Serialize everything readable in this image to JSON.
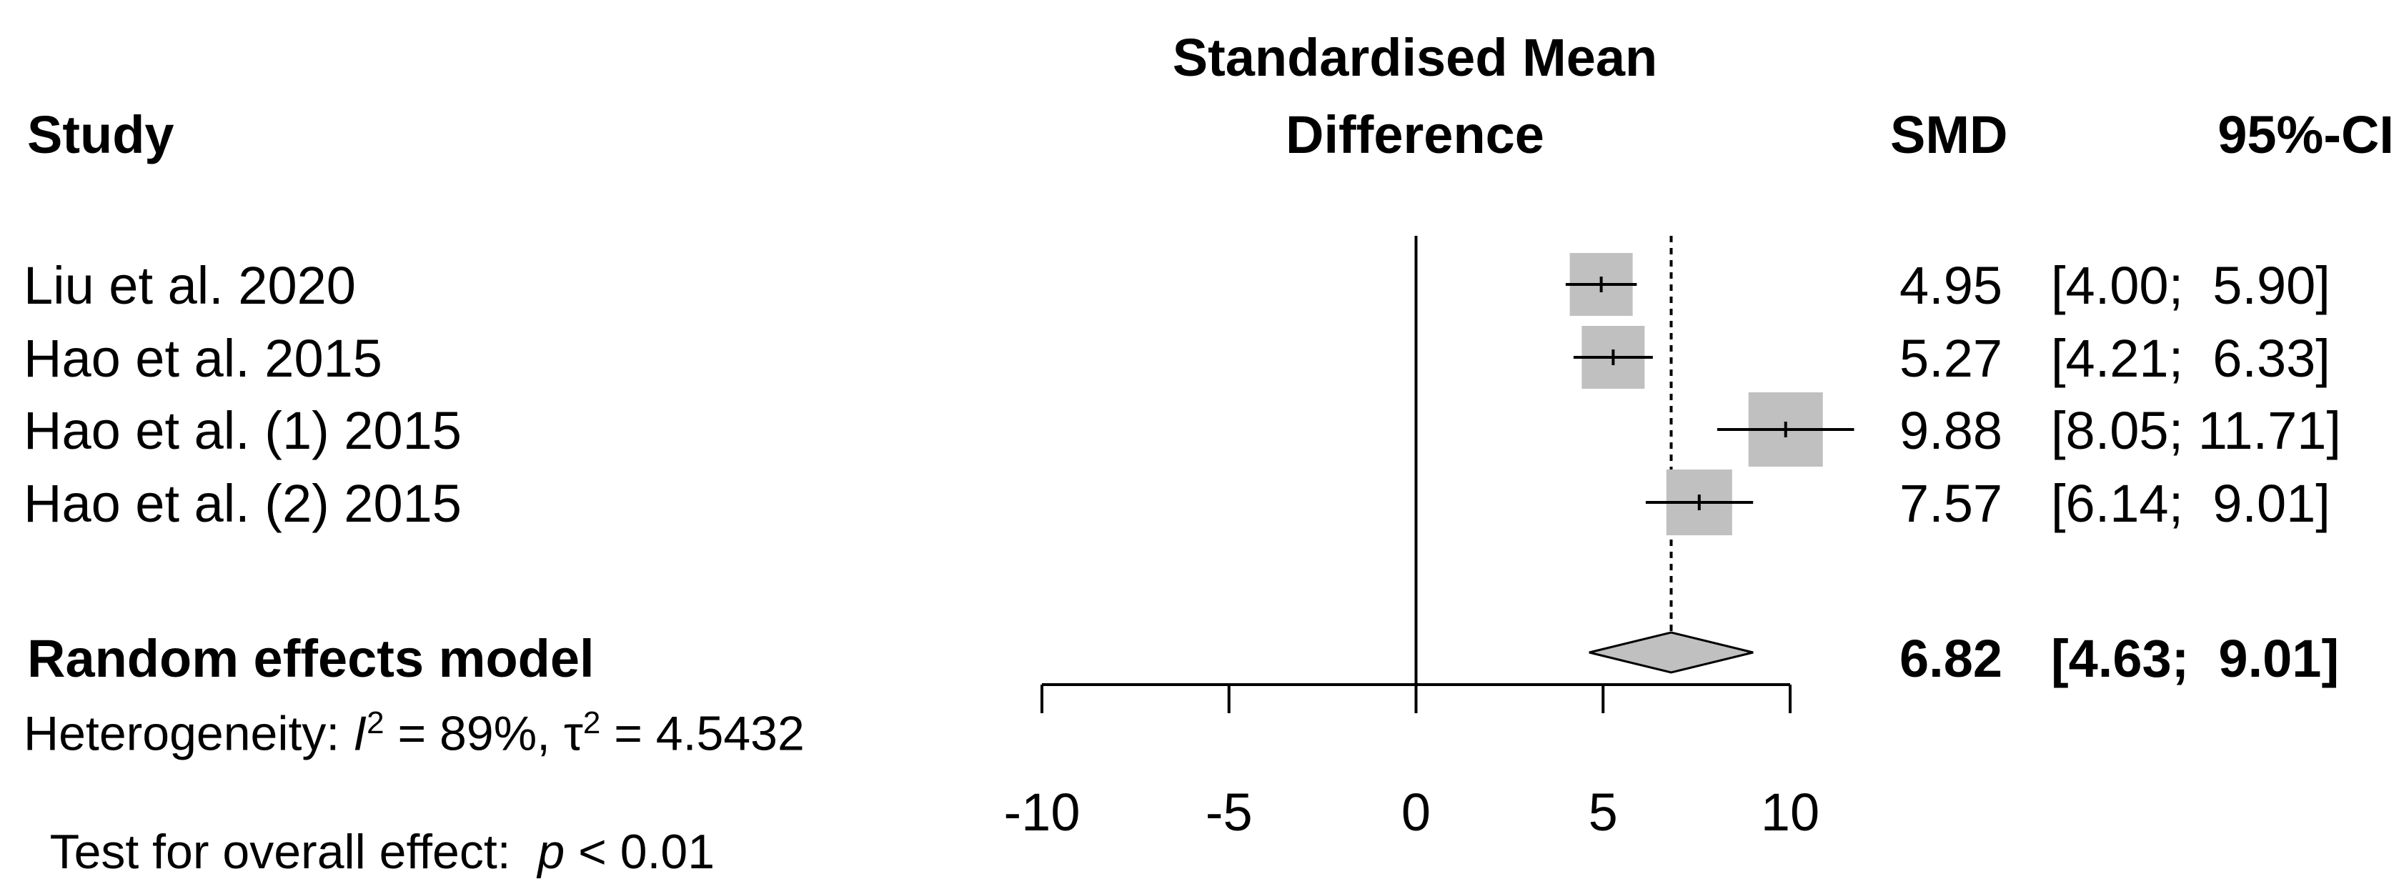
{
  "headers": {
    "study": "Study",
    "effect_title_line1": "Standardised Mean",
    "effect_title_line2": "Difference",
    "smd": "SMD",
    "ci": "95%-CI"
  },
  "studies": [
    {
      "label": "Liu et al. 2020",
      "smd": "4.95",
      "ci": "[4.00;  5.90]"
    },
    {
      "label": "Hao et al. 2015",
      "smd": "5.27",
      "ci": "[4.21;  6.33]"
    },
    {
      "label": "Hao et al. (1) 2015",
      "smd": "9.88",
      "ci": "[8.05; 11.71]"
    },
    {
      "label": "Hao et al. (2) 2015",
      "smd": "7.57",
      "ci": "[6.14;  9.01]"
    }
  ],
  "model": {
    "label": "Random effects model",
    "smd": "6.82",
    "ci": "[4.63;  9.01]"
  },
  "heterogeneity": {
    "prefix": "Heterogeneity: ",
    "i2_symbol": "I",
    "i2_value": " = 89%, ",
    "tau_symbol": "τ",
    "tau_value": " = 4.5432",
    "superscript": "2"
  },
  "overall_effect": {
    "prefix": "Test for overall effect:  ",
    "p_symbol": "p",
    "p_value": " < 0.01"
  },
  "colors": {
    "square": "#c0c0c0",
    "diamond": "#c0c0c0",
    "line": "#000000"
  },
  "chart_data": {
    "type": "forest",
    "xlim": [
      -10,
      10
    ],
    "x_ticks": [
      -10,
      -5,
      0,
      5,
      10
    ],
    "x_tick_labels": [
      "-10",
      "-5",
      "0",
      "5",
      "10"
    ],
    "null_line": 0,
    "summary_line": 6.82,
    "studies": [
      {
        "name": "Liu et al. 2020",
        "estimate": 4.95,
        "lower": 4.0,
        "upper": 5.9
      },
      {
        "name": "Hao et al. 2015",
        "estimate": 5.27,
        "lower": 4.21,
        "upper": 6.33
      },
      {
        "name": "Hao et al. (1) 2015",
        "estimate": 9.88,
        "lower": 8.05,
        "upper": 11.71
      },
      {
        "name": "Hao et al. (2) 2015",
        "estimate": 7.57,
        "lower": 6.14,
        "upper": 9.01
      }
    ],
    "summary": {
      "name": "Random effects model",
      "estimate": 6.82,
      "lower": 4.63,
      "upper": 9.01
    }
  }
}
